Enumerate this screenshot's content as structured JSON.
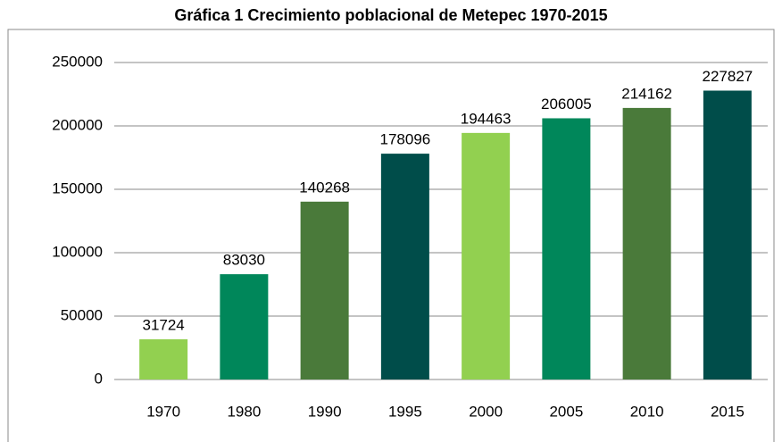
{
  "chart_data": {
    "type": "bar",
    "title": "Gráfica 1  Crecimiento poblacional de Metepec 1970-2015",
    "categories": [
      "1970",
      "1980",
      "1990",
      "1995",
      "2000",
      "2005",
      "2010",
      "2015"
    ],
    "values": [
      31724,
      83030,
      140268,
      178096,
      194463,
      206005,
      214162,
      227827
    ],
    "colors": [
      "#92d050",
      "#00875a",
      "#4a7a3a",
      "#004d4a",
      "#92d050",
      "#00875a",
      "#4a7a3a",
      "#004d4a"
    ],
    "ylim": [
      0,
      250000
    ],
    "yticks": [
      0,
      50000,
      100000,
      150000,
      200000,
      250000
    ],
    "grid": true
  }
}
